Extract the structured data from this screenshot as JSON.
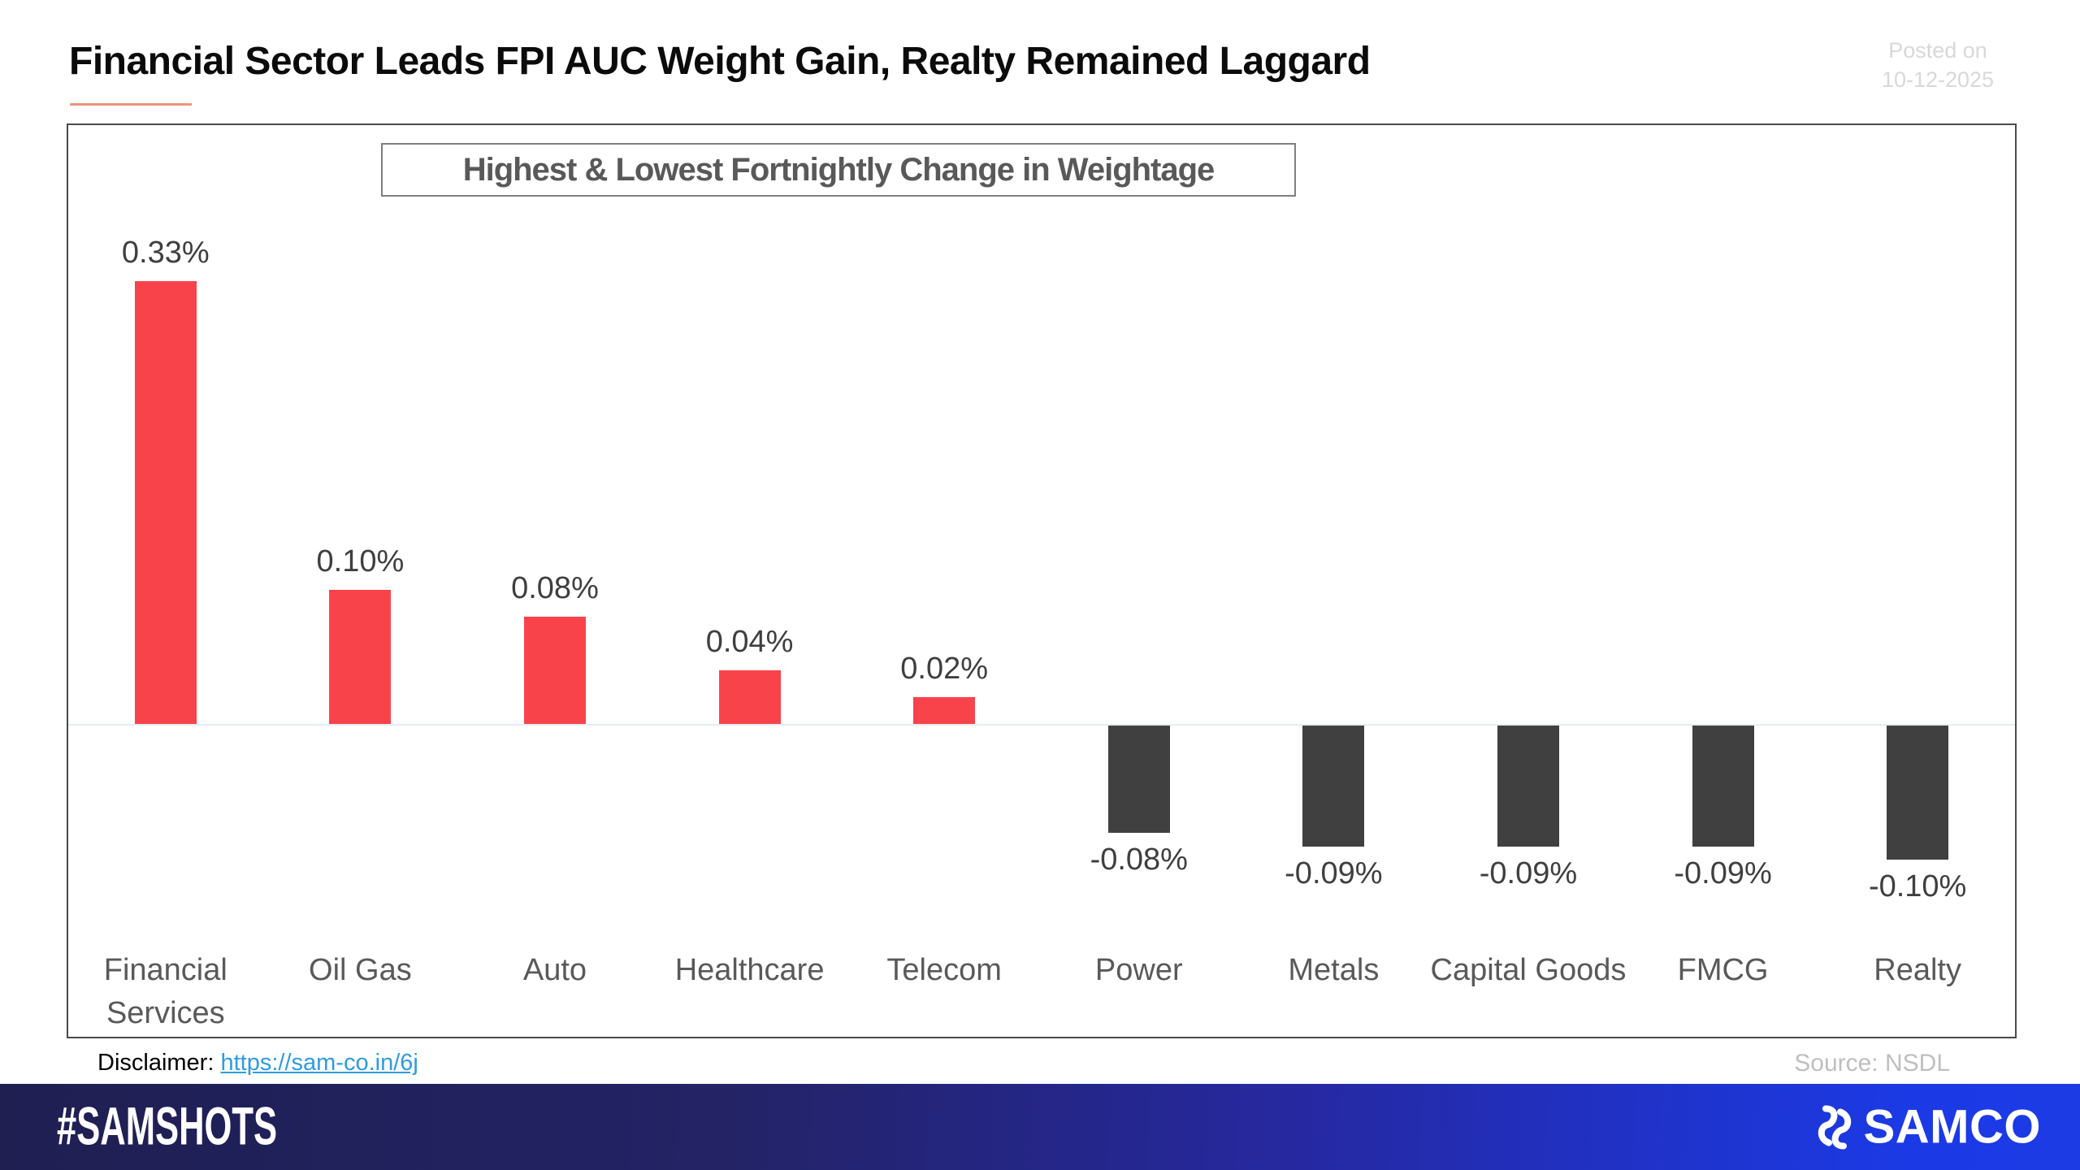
{
  "header": {
    "title": "Financial Sector Leads FPI AUC Weight Gain, Realty Remained Laggard",
    "posted_on_line1": "Posted on",
    "posted_on_line2": "10-12-2025"
  },
  "chart_data": {
    "type": "bar",
    "title": "Highest & Lowest Fortnightly Change in Weightage",
    "categories": [
      "Financial Services",
      "Oil Gas",
      "Auto",
      "Healthcare",
      "Telecom",
      "Power",
      "Metals",
      "Capital Goods",
      "FMCG",
      "Realty"
    ],
    "values": [
      0.33,
      0.1,
      0.08,
      0.04,
      0.02,
      -0.08,
      -0.09,
      -0.09,
      -0.09,
      -0.1
    ],
    "value_labels": [
      "0.33%",
      "0.10%",
      "0.08%",
      "0.04%",
      "0.02%",
      "-0.08%",
      "-0.09%",
      "-0.09%",
      "-0.09%",
      "-0.10%"
    ],
    "xlabel": "",
    "ylabel": "",
    "ylim": [
      -0.15,
      0.38
    ],
    "grid": false,
    "legend": false,
    "positive_color": "#f8434b",
    "negative_color": "#404040",
    "baseline_value": 0
  },
  "footer": {
    "disclaimer_label": "Disclaimer:",
    "disclaimer_link": "https://sam-co.in/6j",
    "source": "Source: NSDL"
  },
  "band": {
    "hashtag": "#SAMSHOTS",
    "brand": "SAMCO",
    "gradient_left": "#1f1f52",
    "gradient_right": "#1c3be4"
  },
  "accents": {
    "title_underline": "#e8967c",
    "link_blue": "#2f9be0",
    "muted_gray": "#d8d8d8"
  }
}
